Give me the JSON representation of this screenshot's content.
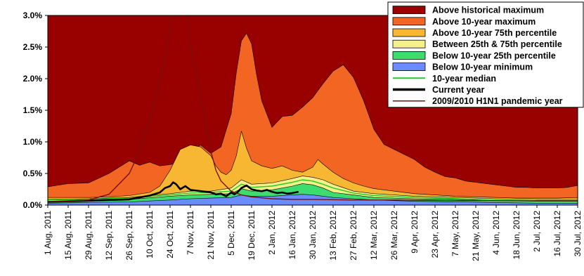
{
  "chart_data": {
    "type": "area",
    "title": "",
    "xlabel": "",
    "ylabel": "",
    "ylim": [
      0,
      3.0
    ],
    "yticks": [
      "0.0%",
      "0.5%",
      "1.0%",
      "1.5%",
      "2.0%",
      "2.5%",
      "3.0%"
    ],
    "xticks": [
      "1 Aug, 2011",
      "15 Aug, 2011",
      "29 Aug, 2011",
      "12 Sep, 2011",
      "26 Sep, 2011",
      "10 Oct, 2011",
      "24 Oct, 2011",
      "7 Nov, 2011",
      "21 Nov, 2011",
      "5 Dec, 2011",
      "19 Dec, 2011",
      "2 Jan, 2012",
      "16 Jan, 2012",
      "30 Jan, 2012",
      "13 Feb, 2012",
      "27 Feb, 2012",
      "12 Mar, 2012",
      "26 Mar, 2012",
      "9 Apr, 2012",
      "23 Apr, 2012",
      "7 May, 2012",
      "21 May, 2012",
      "4 Jun, 2012",
      "18 Jun, 2012",
      "2 Jul, 2012",
      "16 Jul, 2012",
      "30 Jul, 2012"
    ],
    "grid": false,
    "legend_position": "top-right",
    "x_unit": "weeks since 1 Aug 2011",
    "series": [
      {
        "name": "Above historical maximum",
        "color": "#990000",
        "kind": "band",
        "x": [
          0,
          52
        ],
        "values": [
          3.0,
          3.0
        ]
      },
      {
        "name": "Above 10-year maximum",
        "color": "#f26522",
        "kind": "band",
        "x": [
          0,
          2,
          4,
          6,
          8,
          9,
          10,
          11,
          12,
          13,
          14,
          15,
          16,
          17,
          18,
          18.5,
          19,
          19.5,
          20,
          20.5,
          21,
          22,
          23,
          24,
          25,
          26,
          27,
          28,
          29,
          30,
          31,
          32,
          33,
          34,
          35,
          36,
          37,
          38,
          39,
          40,
          41,
          42,
          43,
          44,
          45,
          46,
          47,
          48,
          49,
          50,
          51,
          52
        ],
        "values": [
          0.29,
          0.34,
          0.35,
          0.5,
          0.7,
          0.63,
          0.68,
          0.62,
          0.64,
          0.68,
          0.86,
          0.95,
          0.82,
          0.92,
          1.45,
          2.1,
          2.6,
          2.72,
          2.55,
          2.05,
          1.65,
          1.23,
          1.4,
          1.42,
          1.55,
          1.7,
          1.92,
          2.12,
          2.22,
          2.02,
          1.65,
          1.2,
          0.96,
          0.88,
          0.8,
          0.72,
          0.6,
          0.52,
          0.45,
          0.43,
          0.38,
          0.36,
          0.34,
          0.32,
          0.3,
          0.28,
          0.28,
          0.27,
          0.27,
          0.27,
          0.28,
          0.31
        ]
      },
      {
        "name": "Above 10-year 75th percentile",
        "color": "#f7b733",
        "kind": "band",
        "x": [
          0,
          2,
          4,
          6,
          8,
          10,
          11,
          12,
          13,
          14,
          15,
          16,
          16.5,
          17,
          17.5,
          18,
          18.5,
          19,
          19.5,
          20,
          21,
          22,
          23,
          24,
          25,
          26,
          26.5,
          27,
          28,
          29,
          30,
          31,
          32,
          34,
          36,
          38,
          40,
          42,
          44,
          46,
          48,
          50,
          52
        ],
        "values": [
          0.12,
          0.12,
          0.12,
          0.13,
          0.15,
          0.2,
          0.3,
          0.55,
          0.88,
          0.95,
          0.92,
          0.78,
          0.62,
          0.52,
          0.48,
          0.55,
          0.78,
          1.17,
          0.9,
          0.7,
          0.62,
          0.58,
          0.62,
          0.55,
          0.52,
          0.6,
          0.72,
          0.65,
          0.52,
          0.42,
          0.35,
          0.3,
          0.26,
          0.22,
          0.18,
          0.16,
          0.14,
          0.13,
          0.12,
          0.11,
          0.11,
          0.11,
          0.12
        ]
      },
      {
        "name": "Between 25th & 75th percentile",
        "color": "#f5f08a",
        "kind": "band",
        "x": [
          0,
          4,
          8,
          12,
          14,
          16,
          18,
          19,
          20,
          22,
          24,
          25,
          26,
          27,
          28,
          30,
          32,
          36,
          40,
          44,
          48,
          52
        ],
        "values": [
          0.09,
          0.1,
          0.12,
          0.18,
          0.22,
          0.22,
          0.27,
          0.4,
          0.33,
          0.35,
          0.42,
          0.46,
          0.44,
          0.4,
          0.33,
          0.22,
          0.18,
          0.14,
          0.12,
          0.1,
          0.09,
          0.09
        ]
      },
      {
        "name": "Below 10-year 25th percentile",
        "color": "#3ddc6e",
        "kind": "band",
        "x": [
          0,
          4,
          8,
          12,
          14,
          16,
          18,
          19,
          20,
          22,
          24,
          25,
          26,
          27,
          28,
          30,
          32,
          36,
          40,
          44,
          48,
          52
        ],
        "values": [
          0.06,
          0.07,
          0.09,
          0.14,
          0.16,
          0.17,
          0.18,
          0.26,
          0.22,
          0.24,
          0.3,
          0.34,
          0.32,
          0.27,
          0.2,
          0.16,
          0.12,
          0.1,
          0.09,
          0.07,
          0.06,
          0.06
        ]
      },
      {
        "name": "Below 10-year minimum",
        "color": "#6b8cff",
        "kind": "band",
        "x": [
          0,
          4,
          8,
          12,
          14,
          16,
          18,
          19,
          20,
          22,
          24,
          25,
          26,
          28,
          30,
          32,
          36,
          40,
          44,
          48,
          52
        ],
        "values": [
          0.03,
          0.04,
          0.05,
          0.08,
          0.1,
          0.11,
          0.12,
          0.16,
          0.14,
          0.14,
          0.16,
          0.17,
          0.16,
          0.12,
          0.1,
          0.08,
          0.06,
          0.05,
          0.04,
          0.03,
          0.03
        ]
      },
      {
        "name": "10-year median",
        "color": "#22cc22",
        "kind": "line",
        "x": [
          0,
          4,
          8,
          12,
          14,
          16,
          18,
          19,
          20,
          22,
          24,
          25,
          26,
          27,
          28,
          30,
          32,
          36,
          40,
          44,
          48,
          52
        ],
        "values": [
          0.08,
          0.09,
          0.11,
          0.16,
          0.19,
          0.2,
          0.22,
          0.33,
          0.28,
          0.3,
          0.36,
          0.4,
          0.38,
          0.33,
          0.27,
          0.19,
          0.15,
          0.12,
          0.1,
          0.08,
          0.07,
          0.07
        ]
      },
      {
        "name": "Current year",
        "color": "#000000",
        "kind": "line",
        "x": [
          0,
          2,
          4,
          6,
          8,
          9,
          10,
          11,
          11.5,
          12,
          12.3,
          12.6,
          13,
          13.5,
          14,
          14.5,
          15,
          15.5,
          16,
          16.5,
          17,
          17.5,
          18,
          18.3,
          18.6,
          19,
          19.5,
          20,
          20.5,
          21,
          21.5,
          22,
          22.5,
          23,
          23.5,
          24,
          24.6
        ],
        "values": [
          0.05,
          0.06,
          0.07,
          0.08,
          0.09,
          0.12,
          0.15,
          0.2,
          0.27,
          0.3,
          0.36,
          0.33,
          0.25,
          0.3,
          0.24,
          0.23,
          0.22,
          0.21,
          0.2,
          0.17,
          0.18,
          0.14,
          0.2,
          0.17,
          0.2,
          0.27,
          0.31,
          0.25,
          0.23,
          0.22,
          0.24,
          0.21,
          0.19,
          0.2,
          0.18,
          0.19,
          0.21
        ]
      },
      {
        "name": "2009/2010 H1N1 pandemic year",
        "color": "#7a0e0e",
        "kind": "line",
        "x": [
          0,
          4,
          6,
          8,
          9,
          10,
          11,
          12,
          12.6,
          13.2,
          13.8,
          14,
          15,
          15.5,
          16,
          16.5,
          17,
          17.5,
          18,
          19,
          20,
          22,
          24,
          26,
          30,
          34,
          40,
          46,
          52
        ],
        "values": [
          0.05,
          0.08,
          0.17,
          0.5,
          0.85,
          1.35,
          1.95,
          2.75,
          3.4,
          3.4,
          2.8,
          2.55,
          1.75,
          1.3,
          0.85,
          0.55,
          0.38,
          0.3,
          0.22,
          0.16,
          0.13,
          0.1,
          0.09,
          0.09,
          0.08,
          0.08,
          0.07,
          0.07,
          0.07
        ]
      }
    ]
  }
}
